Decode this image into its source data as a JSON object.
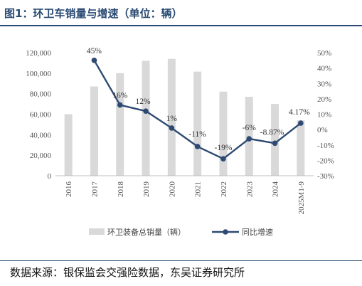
{
  "figure": {
    "title": "图1：环卫车销量与增速（单位：辆）",
    "source": "数据来源：银保监会交强险数据，东吴证券研究所"
  },
  "colors": {
    "bar": "#d9d9d9",
    "line": "#2e4a73",
    "title": "#2a4a73",
    "axis": "#bfbfbf"
  },
  "chart_data": {
    "type": "bar",
    "categories": [
      "2016",
      "2017",
      "2018",
      "2019",
      "2020",
      "2021",
      "2022",
      "2023",
      "2024",
      "2025M1-9"
    ],
    "series": [
      {
        "name": "环卫装备总销量（辆）",
        "type": "bar",
        "axis": "left",
        "values": [
          60000,
          87000,
          100000,
          112000,
          114000,
          101500,
          82000,
          77000,
          70000,
          54000
        ]
      },
      {
        "name": "同比增速",
        "type": "line",
        "axis": "right",
        "values": [
          null,
          45,
          16,
          12,
          1,
          -11,
          -19,
          -6,
          -8.87,
          4.17
        ],
        "labels": [
          "",
          "45%",
          "16%",
          "12%",
          "1%",
          "-11%",
          "-19%",
          "-6%",
          "-8.87%",
          "4.17%"
        ]
      }
    ],
    "y_left": {
      "ylim": [
        0,
        120000
      ],
      "ticks": [
        0,
        20000,
        40000,
        60000,
        80000,
        100000,
        120000
      ],
      "tick_labels": [
        "0",
        "20,000",
        "40,000",
        "60,000",
        "80,000",
        "100,000",
        "120,000"
      ]
    },
    "y_right": {
      "ylim": [
        -30,
        50
      ],
      "ticks": [
        -30,
        -20,
        -10,
        0,
        10,
        20,
        30,
        40,
        50
      ],
      "tick_labels": [
        "-30%",
        "-20%",
        "-10%",
        "0%",
        "10%",
        "20%",
        "30%",
        "40%",
        "50%"
      ]
    },
    "grid": false,
    "legend_position": "bottom"
  }
}
